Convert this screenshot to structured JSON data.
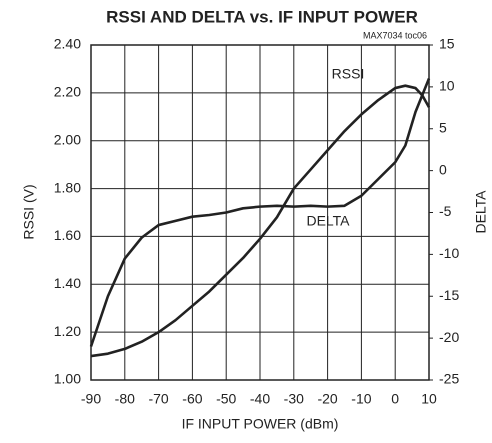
{
  "chart_data": {
    "type": "line",
    "title": "RSSI AND DELTA vs. IF INPUT POWER",
    "annotation": "MAX7034 toc06",
    "xlabel": "IF INPUT POWER (dBm)",
    "ylabel": "RSSI (V)",
    "y2label": "DELTA",
    "x": [
      -90,
      -85,
      -80,
      -75,
      -70,
      -65,
      -60,
      -55,
      -50,
      -45,
      -40,
      -35,
      -30,
      -25,
      -20,
      -15,
      -10,
      -5,
      0,
      3,
      6,
      8,
      10
    ],
    "series": [
      {
        "name": "RSSI",
        "color": "#222222",
        "axis": "y",
        "values": [
          1.1,
          1.11,
          1.13,
          1.16,
          1.2,
          1.25,
          1.31,
          1.37,
          1.44,
          1.51,
          1.59,
          1.68,
          1.8,
          1.88,
          1.96,
          2.04,
          2.11,
          2.17,
          2.22,
          2.23,
          2.22,
          2.19,
          2.14
        ]
      },
      {
        "name": "DELTA",
        "color": "#222222",
        "axis": "y2",
        "values": [
          -21,
          -15,
          -10.5,
          -8,
          -6.5,
          -6,
          -5.5,
          -5.3,
          -5,
          -4.5,
          -4.3,
          -4.2,
          -4.3,
          -4.2,
          -4.3,
          -4.2,
          -3,
          -1,
          1,
          3,
          7,
          9,
          11
        ]
      }
    ],
    "xlim": [
      -90,
      10
    ],
    "xticks": [
      -90,
      -80,
      -70,
      -60,
      -50,
      -40,
      -30,
      -20,
      -10,
      0,
      10
    ],
    "ylim": [
      1.0,
      2.4
    ],
    "yticks": [
      {
        "value": 1.0,
        "label": "1.00"
      },
      {
        "value": 1.2,
        "label": "1.20"
      },
      {
        "value": 1.4,
        "label": "1.40"
      },
      {
        "value": 1.6,
        "label": "1.60"
      },
      {
        "value": 1.8,
        "label": "1.80"
      },
      {
        "value": 2.0,
        "label": "2.00"
      },
      {
        "value": 2.2,
        "label": "2.20"
      },
      {
        "value": 2.4,
        "label": "2.40"
      }
    ],
    "y2lim": [
      -25,
      15
    ],
    "y2ticks": [
      -25,
      -20,
      -15,
      -10,
      -5,
      0,
      5,
      10,
      15
    ],
    "grid": true
  }
}
